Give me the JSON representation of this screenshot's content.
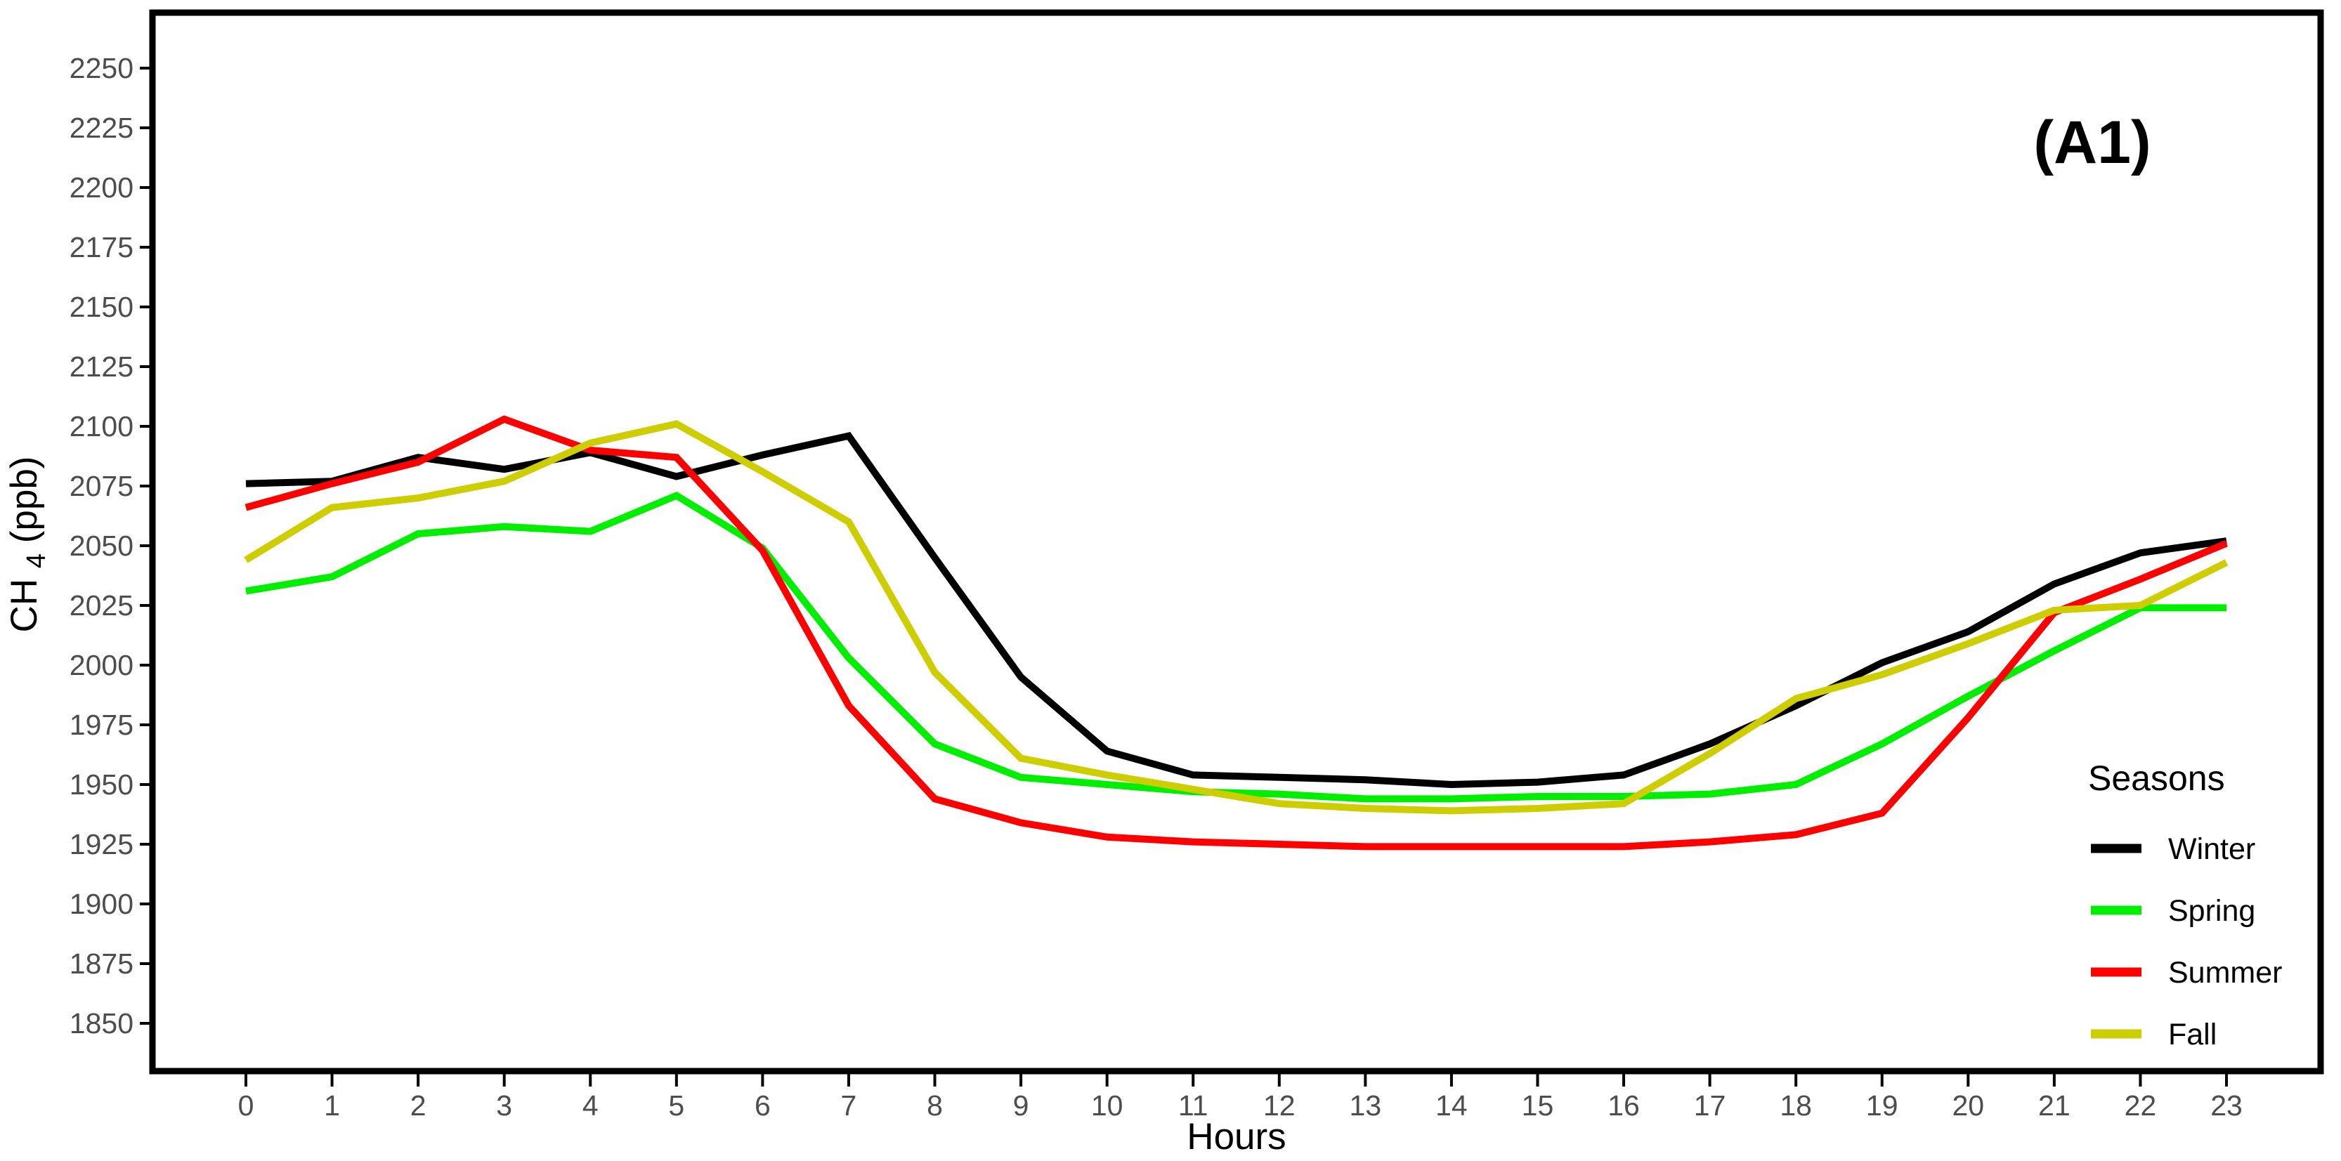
{
  "figure_label": "(A1)",
  "colors": {
    "background": "#FFFFFF",
    "panel_border": "#000000",
    "tick_label": "#4D4D4D",
    "axis_text": "#000000"
  },
  "legend": {
    "title": "Seasons",
    "position": "inside-right"
  },
  "chart_data": {
    "type": "line",
    "title": "",
    "xlabel": "Hours",
    "ylabel": "CH4(ppb)",
    "ylabel_parts": {
      "main": "CH",
      "sub": "4",
      "rest": "(ppb)"
    },
    "x": [
      0,
      1,
      2,
      3,
      4,
      5,
      6,
      7,
      8,
      9,
      10,
      11,
      12,
      13,
      14,
      15,
      16,
      17,
      18,
      19,
      20,
      21,
      22,
      23
    ],
    "x_tick_labels": [
      "0",
      "1",
      "2",
      "3",
      "4",
      "5",
      "6",
      "7",
      "8",
      "9",
      "10",
      "11",
      "12",
      "13",
      "14",
      "15",
      "16",
      "17",
      "18",
      "19",
      "20",
      "21",
      "22",
      "23"
    ],
    "y_ticks": [
      1850,
      1875,
      1900,
      1925,
      1950,
      1975,
      2000,
      2025,
      2050,
      2075,
      2100,
      2125,
      2150,
      2175,
      2200,
      2225,
      2250
    ],
    "xlim": [
      0,
      23
    ],
    "ylim": [
      1830,
      2273
    ],
    "grid": false,
    "legend_position": "inside-right",
    "series": [
      {
        "name": "Winter",
        "color": "#000000",
        "values": [
          2076,
          2077,
          2087,
          2082,
          2089,
          2079,
          2088,
          2096,
          2045,
          1995,
          1964,
          1954,
          1953,
          1952,
          1950,
          1951,
          1954,
          1967,
          1983,
          2001,
          2014,
          2034,
          2047,
          2052
        ]
      },
      {
        "name": "Spring",
        "color": "#00EE00",
        "values": [
          2031,
          2037,
          2055,
          2058,
          2056,
          2071,
          2049,
          2003,
          1967,
          1953,
          1950,
          1947,
          1946,
          1944,
          1944,
          1945,
          1945,
          1946,
          1950,
          1967,
          1987,
          2006,
          2024,
          2024
        ]
      },
      {
        "name": "Summer",
        "color": "#FF0000",
        "values": [
          2066,
          2076,
          2085,
          2103,
          2090,
          2087,
          2048,
          1983,
          1944,
          1934,
          1928,
          1926,
          1925,
          1924,
          1924,
          1924,
          1924,
          1926,
          1929,
          1938,
          1978,
          2022,
          2036,
          2051
        ]
      },
      {
        "name": "Fall",
        "color": "#CDCD00",
        "values": [
          2044,
          2066,
          2070,
          2077,
          2093,
          2101,
          2081,
          2060,
          1997,
          1961,
          1954,
          1948,
          1942,
          1940,
          1939,
          1940,
          1942,
          1963,
          1986,
          1996,
          2009,
          2023,
          2025,
          2043
        ]
      }
    ]
  }
}
